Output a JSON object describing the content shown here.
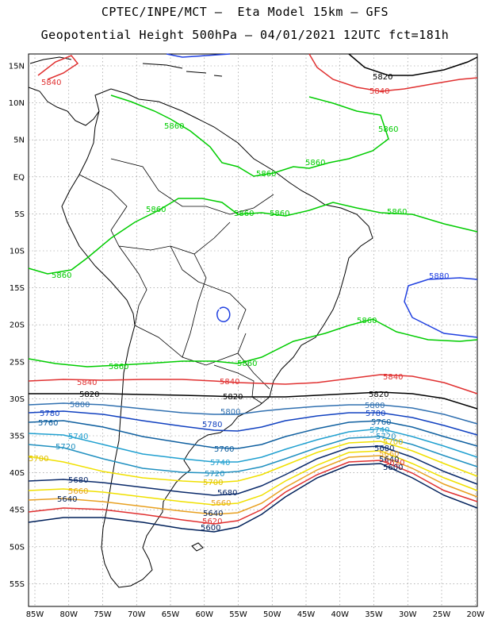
{
  "header": {
    "line1": "CPTEC/INPE/MCT –  Eta Model 15km – GFS",
    "line2": "Geopotential Height 500hPa – 04/01/2021 12UTC fct=181h"
  },
  "axes": {
    "lat_ticks": [
      "15N",
      "10N",
      "5N",
      "EQ",
      "5S",
      "10S",
      "15S",
      "20S",
      "25S",
      "30S",
      "35S",
      "40S",
      "45S",
      "50S",
      "55S"
    ],
    "lon_ticks": [
      "85W",
      "80W",
      "75W",
      "70W",
      "65W",
      "60W",
      "55W",
      "50W",
      "45W",
      "40W",
      "35W",
      "30W",
      "25W",
      "20W"
    ]
  },
  "colors": {
    "c5600": "#00205a",
    "c5620": "#e03030",
    "c5640": "#e8a020",
    "c5660": "#f0e000",
    "c5680": "#0a2a6a",
    "c5700": "#f0e000",
    "c5720": "#2090c0",
    "c5740": "#20a0d0",
    "c5760": "#1060a0",
    "c5780": "#1040c0",
    "c5800": "#3070b0",
    "c5820": "#000000",
    "c5840": "#e03030",
    "c5860": "#00cc00",
    "c5880": "#2040e0",
    "coast": "#000000",
    "grid": "#888888"
  },
  "contour_labels": {
    "l5840_nw": "5840",
    "l5820_n": "5820",
    "l5840_n": "5840",
    "l5860_a": "5860",
    "l5860_b": "5860",
    "l5860_c": "5860",
    "l5860_d": "5860",
    "l5860_e": "5860",
    "l5860_f": "5860",
    "l5860_g": "5860",
    "l5860_h": "5860",
    "l5860_i": "5860",
    "l5860_j": "5860",
    "l5860_k": "5860",
    "l5860_l": "5860",
    "l5880_e": "5880",
    "l5840_w": "5840",
    "l5840_c": "5840",
    "l5840_e": "5840",
    "l5820_w": "5820",
    "l5820_c": "5820",
    "l5820_e": "5820",
    "l5800_w": "5800",
    "l5800_c": "5800",
    "l5800_e": "5800",
    "l5780_w": "5780",
    "l5780_c": "5780",
    "l5780_e": "5780",
    "l5760_w": "5760",
    "l5760_c": "5760",
    "l5760_e": "5760",
    "l5740_w": "5740",
    "l5740_c": "5740",
    "l5740_e": "5740",
    "l5720_w": "5720",
    "l5720_c": "5720",
    "l5720_e": "5720",
    "l5700_w": "5700",
    "l5700_c": "5700",
    "l5700_e": "5700",
    "l5680_w": "5680",
    "l5680_c": "5680",
    "l5680_e": "5680",
    "l5660_w": "5660",
    "l5660_c": "5660",
    "l5660_e": "5660",
    "l5640_w": "5640",
    "l5640_c": "5640",
    "l5640_e": "5640",
    "l5620_c": "5620",
    "l5620_e": "5620",
    "l5600_c": "5600",
    "l5600_e": "5600"
  }
}
